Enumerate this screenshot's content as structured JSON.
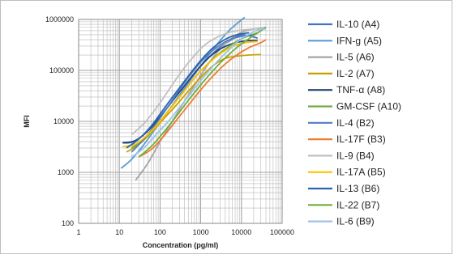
{
  "chart_data": {
    "type": "line",
    "xlabel": "Concentration (pg/ml)",
    "ylabel": "MFI",
    "xscale": "log",
    "yscale": "log",
    "xlim": [
      1,
      100000
    ],
    "ylim": [
      100,
      1000000
    ],
    "x_ticks": [
      1,
      10,
      100,
      1000,
      10000,
      100000
    ],
    "x_tick_labels": [
      "1",
      "10",
      "100",
      "1000",
      "10000",
      "100000"
    ],
    "y_ticks": [
      100,
      1000,
      10000,
      100000,
      1000000
    ],
    "y_tick_labels": [
      "100",
      "1000",
      "10000",
      "100000",
      "1000000"
    ],
    "grid": "major and minor",
    "legend_position": "right",
    "series": [
      {
        "name": "IL-10 (A4)",
        "color": "#4472c4",
        "x": [
          12,
          20,
          40,
          80,
          160,
          320,
          640,
          1280,
          2560,
          5120,
          10240,
          25000
        ],
        "y": [
          3800,
          3900,
          5500,
          10000,
          20000,
          40000,
          80000,
          150000,
          260000,
          380000,
          500000,
          430000
        ]
      },
      {
        "name": "IFN-g (A5)",
        "color": "#5b9bd5",
        "x": [
          11,
          20,
          40,
          80,
          160,
          320,
          640,
          1280,
          2560,
          5120,
          12000
        ],
        "y": [
          1200,
          1800,
          3500,
          7500,
          16000,
          35000,
          75000,
          160000,
          330000,
          620000,
          1100000
        ]
      },
      {
        "name": "IL-5 (A6)",
        "color": "#a5a5a5",
        "x": [
          25,
          50,
          100,
          200,
          400,
          800,
          1600,
          3200,
          6400,
          12800,
          40000
        ],
        "y": [
          700,
          1500,
          4000,
          10000,
          25000,
          60000,
          140000,
          280000,
          450000,
          600000,
          700000
        ]
      },
      {
        "name": "IL-2 (A7)",
        "color": "#c9a000",
        "x": [
          15,
          30,
          60,
          120,
          240,
          480,
          960,
          1920,
          3840,
          7680,
          15360,
          30000
        ],
        "y": [
          2500,
          3500,
          6000,
          11000,
          20000,
          38000,
          70000,
          120000,
          170000,
          190000,
          200000,
          205000
        ]
      },
      {
        "name": "TNF-α (A8)",
        "color": "#264478",
        "x": [
          12,
          25,
          50,
          100,
          200,
          400,
          800,
          1600,
          3200,
          6400,
          12800,
          25000
        ],
        "y": [
          3800,
          4200,
          6500,
          12000,
          25000,
          50000,
          100000,
          180000,
          270000,
          340000,
          380000,
          390000
        ]
      },
      {
        "name": "GM-CSF (A10)",
        "color": "#70ad47",
        "x": [
          20,
          40,
          80,
          160,
          320,
          640,
          1280,
          2560,
          5120,
          10240,
          25000
        ],
        "y": [
          3000,
          4500,
          8000,
          16000,
          32000,
          65000,
          120000,
          200000,
          300000,
          420000,
          550000
        ]
      },
      {
        "name": "IL-4 (B2)",
        "color": "#4d7fbf",
        "x": [
          20,
          40,
          80,
          160,
          320,
          640,
          1280,
          2560,
          5120,
          10240,
          20000
        ],
        "y": [
          2500,
          4500,
          9000,
          20000,
          45000,
          95000,
          180000,
          290000,
          400000,
          470000,
          500000
        ]
      },
      {
        "name": "IL-17F (B3)",
        "color": "#ed7d31",
        "x": [
          30,
          60,
          120,
          240,
          480,
          960,
          1920,
          3840,
          7680,
          15360,
          30000,
          40000
        ],
        "y": [
          2000,
          2800,
          5000,
          10000,
          20000,
          40000,
          75000,
          130000,
          200000,
          280000,
          350000,
          400000
        ]
      },
      {
        "name": "IL-9 (B4)",
        "color": "#c0c0c0",
        "x": [
          20,
          40,
          80,
          160,
          320,
          640,
          1280,
          2560,
          5120,
          10240,
          20000,
          40000
        ],
        "y": [
          5500,
          9000,
          18000,
          40000,
          90000,
          180000,
          320000,
          450000,
          560000,
          620000,
          650000,
          680000
        ]
      },
      {
        "name": "IL-17A (B5)",
        "color": "#ffc000",
        "x": [
          12,
          25,
          50,
          100,
          200,
          400,
          800,
          1600,
          3200,
          6400,
          12800,
          25000
        ],
        "y": [
          3200,
          3600,
          5500,
          10000,
          20000,
          40000,
          80000,
          140000,
          220000,
          300000,
          350000,
          370000
        ]
      },
      {
        "name": "IL-13 (B6)",
        "color": "#2e63b0",
        "x": [
          15,
          30,
          60,
          120,
          240,
          480,
          960,
          1920,
          3840,
          7680,
          15360
        ],
        "y": [
          3000,
          4500,
          8000,
          17000,
          36000,
          75000,
          150000,
          270000,
          400000,
          500000,
          550000
        ]
      },
      {
        "name": "IL-22 (B7)",
        "color": "#6fb03c",
        "x": [
          30,
          60,
          120,
          240,
          480,
          960,
          1920,
          3840,
          7680,
          15360,
          30000,
          40000
        ],
        "y": [
          2000,
          3200,
          6000,
          12000,
          25000,
          50000,
          95000,
          170000,
          280000,
          420000,
          600000,
          700000
        ]
      },
      {
        "name": "IL-6 (B9)",
        "color": "#9dc3e6",
        "x": [
          20,
          40,
          80,
          160,
          320,
          640,
          1280,
          2560,
          5120,
          10240,
          25000,
          40000
        ],
        "y": [
          2000,
          3000,
          5500,
          10000,
          20000,
          40000,
          80000,
          150000,
          260000,
          420000,
          620000,
          650000
        ]
      }
    ]
  }
}
